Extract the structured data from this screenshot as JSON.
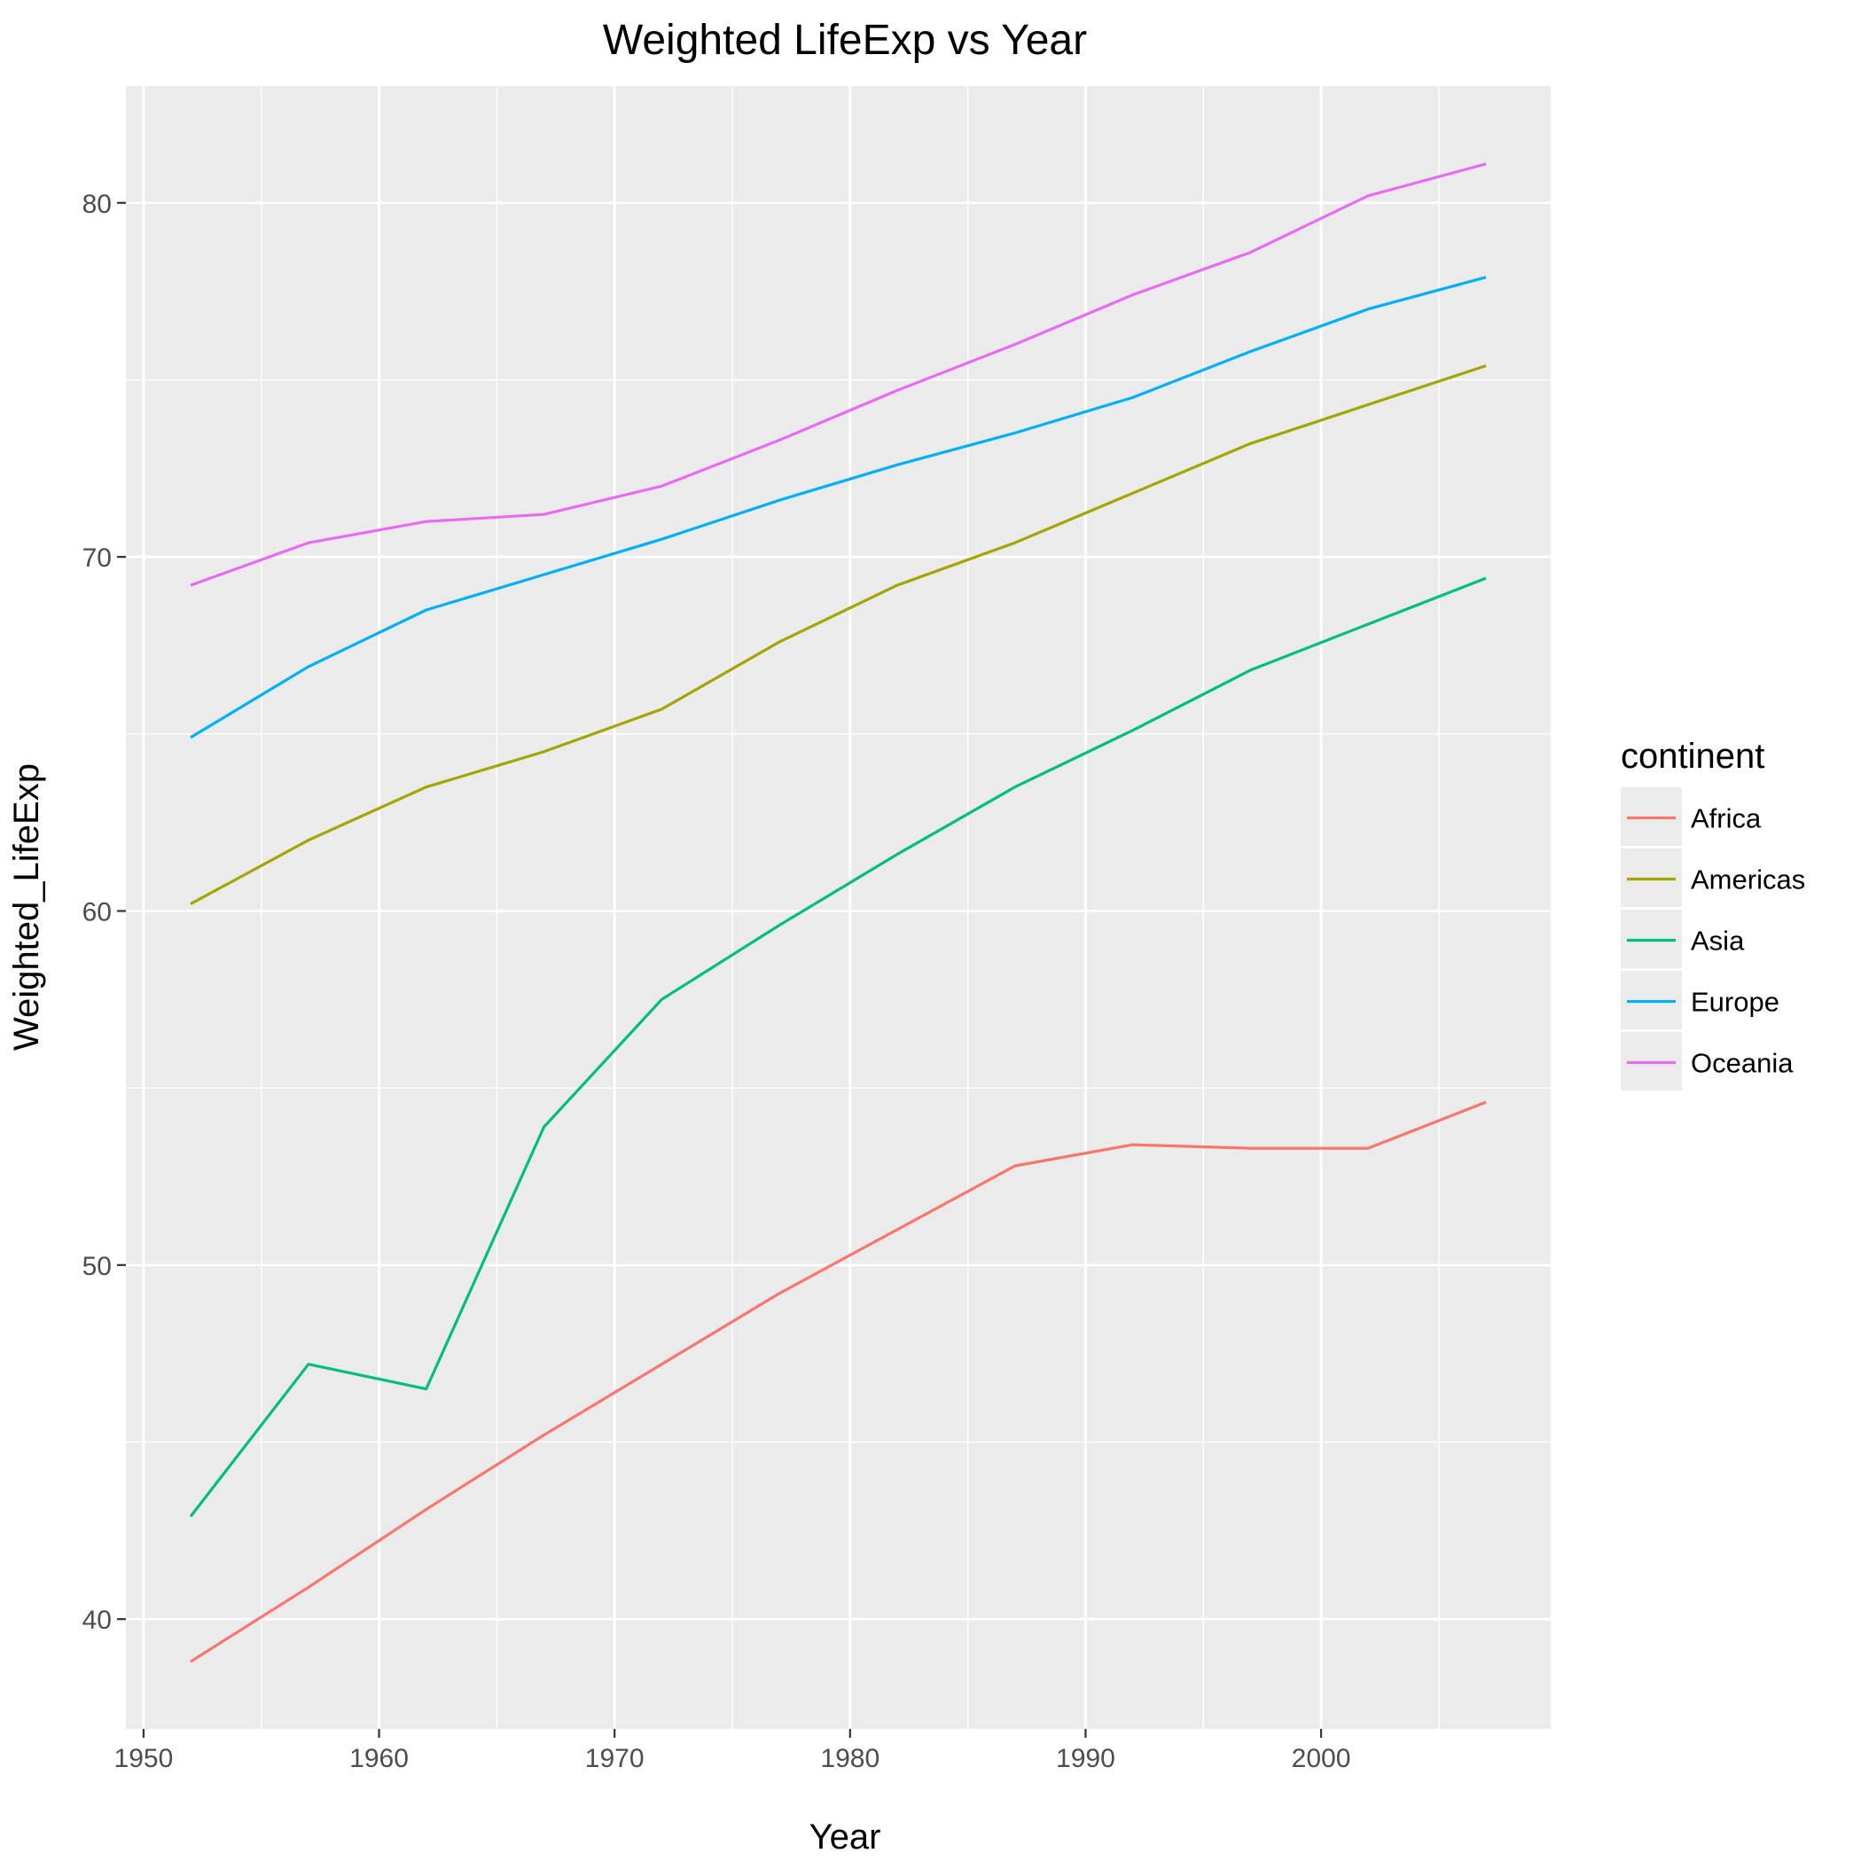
{
  "chart_data": {
    "type": "line",
    "title": "Weighted LifeExp vs Year",
    "xlabel": "Year",
    "ylabel": "Weighted_LifeExp",
    "xlim": [
      1949.25,
      2009.75
    ],
    "ylim": [
      36.9,
      83.3
    ],
    "x_ticks": [
      1950,
      1960,
      1970,
      1980,
      1990,
      2000
    ],
    "y_ticks": [
      40,
      50,
      60,
      70,
      80
    ],
    "grid": true,
    "legend_title": "continent",
    "legend_position": "right",
    "x": [
      1952,
      1957,
      1962,
      1967,
      1972,
      1977,
      1982,
      1987,
      1992,
      1997,
      2002,
      2007
    ],
    "series": [
      {
        "name": "Africa",
        "color": "#F8766D",
        "values": [
          38.8,
          40.9,
          43.1,
          45.2,
          47.2,
          49.2,
          51.0,
          52.8,
          53.4,
          53.3,
          53.3,
          54.6
        ]
      },
      {
        "name": "Americas",
        "color": "#A3A500",
        "values": [
          60.2,
          62.0,
          63.5,
          64.5,
          65.7,
          67.6,
          69.2,
          70.4,
          71.8,
          73.2,
          74.3,
          75.4
        ]
      },
      {
        "name": "Asia",
        "color": "#00BF7D",
        "values": [
          42.9,
          47.2,
          46.5,
          53.9,
          57.5,
          59.6,
          61.6,
          63.5,
          65.1,
          66.8,
          68.1,
          69.4
        ]
      },
      {
        "name": "Europe",
        "color": "#00B0F6",
        "values": [
          64.9,
          66.9,
          68.5,
          69.5,
          70.5,
          71.6,
          72.6,
          73.5,
          74.5,
          75.8,
          77.0,
          77.9
        ]
      },
      {
        "name": "Oceania",
        "color": "#E76BF3",
        "values": [
          69.2,
          70.4,
          71.0,
          71.2,
          72.0,
          73.3,
          74.7,
          76.0,
          77.4,
          78.6,
          80.2,
          81.1
        ]
      }
    ]
  }
}
